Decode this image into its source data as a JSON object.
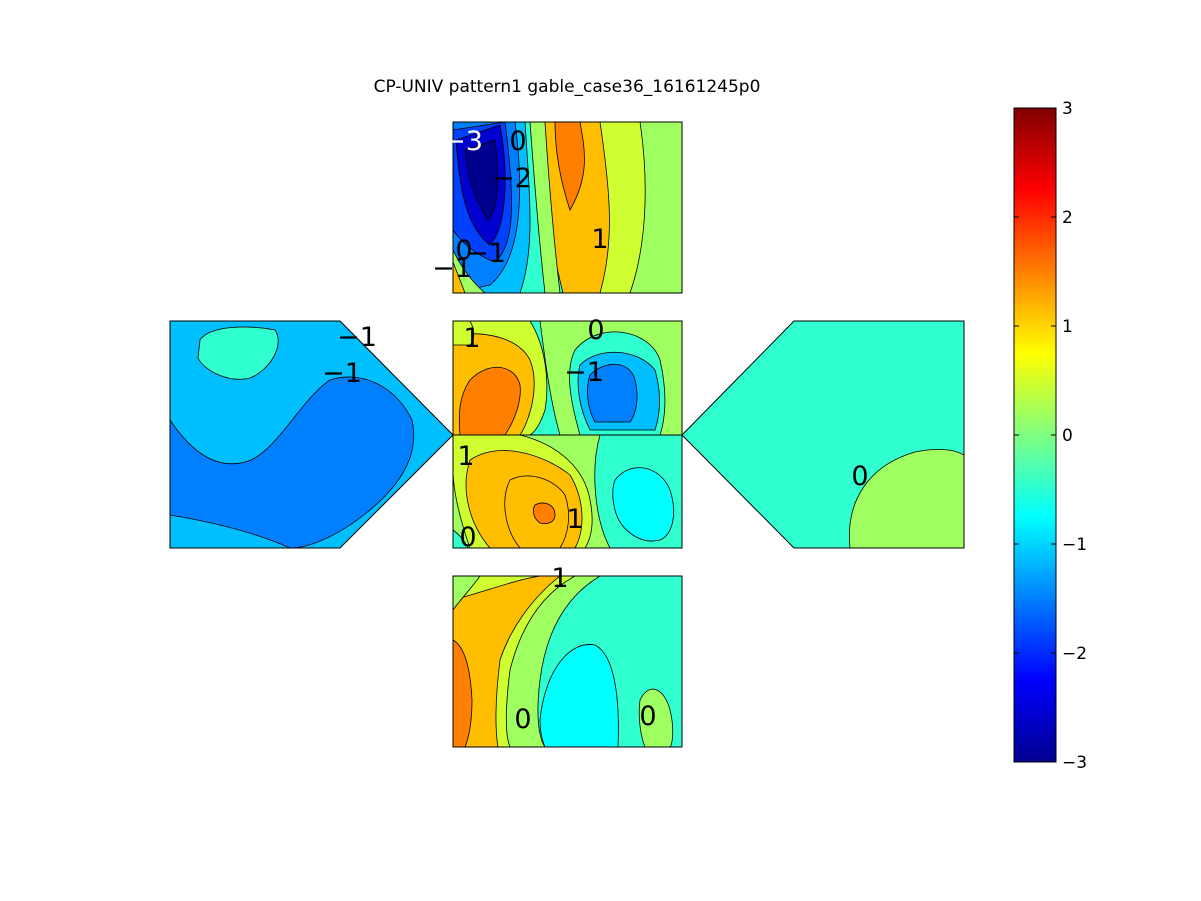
{
  "chart_data": {
    "type": "heatmap",
    "title": "CP-UNIV pattern1 gable_case36_16161245p0",
    "colorbar": {
      "ticks": [
        "3",
        "2",
        "1",
        "0",
        "−1",
        "−2",
        "−3"
      ],
      "range": [
        -3,
        3
      ],
      "colormap": "jet",
      "position": "right"
    },
    "faces": [
      {
        "name": "top roof face",
        "contour_labels": [
          "−3",
          "0",
          "−2",
          "1",
          "−1",
          "0",
          "−1"
        ]
      },
      {
        "name": "upper middle roof face",
        "contour_labels": [
          "1",
          "0",
          "−1"
        ]
      },
      {
        "name": "lower middle roof face",
        "contour_labels": [
          "1",
          "1",
          "0"
        ]
      },
      {
        "name": "bottom wall face",
        "contour_labels": [
          "1",
          "0",
          "0"
        ]
      },
      {
        "name": "left gable wall",
        "contour_labels": [
          "−1",
          "−1"
        ]
      },
      {
        "name": "right gable wall",
        "contour_labels": [
          "0"
        ]
      }
    ]
  }
}
